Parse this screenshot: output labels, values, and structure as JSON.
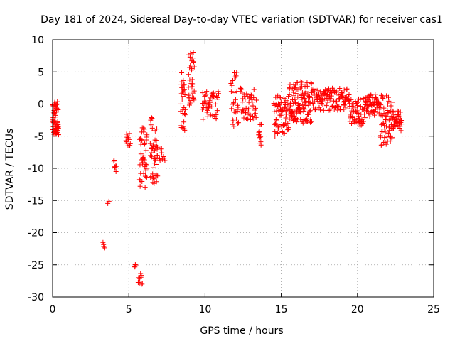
{
  "chart_data": {
    "type": "scatter",
    "title": "Day 181 of 2024, Sidereal Day-to-day VTEC variation (SDTVAR) for receiver cas1",
    "xlabel": "GPS time / hours",
    "ylabel": "SDTVAR / TECUs",
    "xlim": [
      0,
      25
    ],
    "ylim": [
      -30,
      10
    ],
    "xticks": [
      0,
      5,
      10,
      15,
      20,
      25
    ],
    "yticks": [
      10,
      5,
      0,
      -5,
      -10,
      -15,
      -20,
      -25,
      -30
    ],
    "grid": true,
    "marker": "plus",
    "color": "#ff0000",
    "series": [
      {
        "name": "SDTVAR",
        "clusters": [
          {
            "x": [
              0.0,
              0.4
            ],
            "y": [
              -5.0,
              0.5
            ],
            "n": 60
          },
          {
            "x": [
              3.3,
              3.4
            ],
            "y": [
              -22.5,
              -21.5
            ],
            "n": 4
          },
          {
            "x": [
              3.6,
              3.7
            ],
            "y": [
              -15.5,
              -15.0
            ],
            "n": 2
          },
          {
            "x": [
              4.0,
              4.2
            ],
            "y": [
              -11.0,
              -8.3
            ],
            "n": 8
          },
          {
            "x": [
              4.8,
              5.1
            ],
            "y": [
              -6.5,
              -4.5
            ],
            "n": 14
          },
          {
            "x": [
              5.3,
              5.5
            ],
            "y": [
              -25.5,
              -24.8
            ],
            "n": 4
          },
          {
            "x": [
              5.6,
              5.9
            ],
            "y": [
              -28.0,
              -26.3
            ],
            "n": 10
          },
          {
            "x": [
              5.7,
              6.2
            ],
            "y": [
              -13.0,
              -3.5
            ],
            "n": 40
          },
          {
            "x": [
              6.4,
              6.9
            ],
            "y": [
              -12.5,
              -2.0
            ],
            "n": 45
          },
          {
            "x": [
              7.0,
              7.4
            ],
            "y": [
              -9.0,
              -6.5
            ],
            "n": 10
          },
          {
            "x": [
              8.4,
              8.7
            ],
            "y": [
              -4.5,
              5.0
            ],
            "n": 30
          },
          {
            "x": [
              8.9,
              9.3
            ],
            "y": [
              -1.5,
              8.5
            ],
            "n": 35
          },
          {
            "x": [
              9.8,
              10.9
            ],
            "y": [
              -2.5,
              2.0
            ],
            "n": 45
          },
          {
            "x": [
              11.7,
              12.2
            ],
            "y": [
              -4.0,
              5.0
            ],
            "n": 30
          },
          {
            "x": [
              12.3,
              13.4
            ],
            "y": [
              -2.5,
              2.5
            ],
            "n": 50
          },
          {
            "x": [
              13.5,
              13.7
            ],
            "y": [
              -7.0,
              -3.0
            ],
            "n": 12
          },
          {
            "x": [
              14.5,
              15.5
            ],
            "y": [
              -5.0,
              1.5
            ],
            "n": 70
          },
          {
            "x": [
              15.5,
              17.0
            ],
            "y": [
              -3.0,
              3.5
            ],
            "n": 120
          },
          {
            "x": [
              17.0,
              19.5
            ],
            "y": [
              -1.0,
              2.5
            ],
            "n": 130
          },
          {
            "x": [
              19.5,
              20.5
            ],
            "y": [
              -3.5,
              1.0
            ],
            "n": 60
          },
          {
            "x": [
              20.5,
              21.5
            ],
            "y": [
              -2.0,
              1.5
            ],
            "n": 60
          },
          {
            "x": [
              21.5,
              22.3
            ],
            "y": [
              -6.5,
              1.5
            ],
            "n": 60
          },
          {
            "x": [
              22.3,
              22.9
            ],
            "y": [
              -4.5,
              -1.0
            ],
            "n": 40
          }
        ]
      }
    ]
  }
}
